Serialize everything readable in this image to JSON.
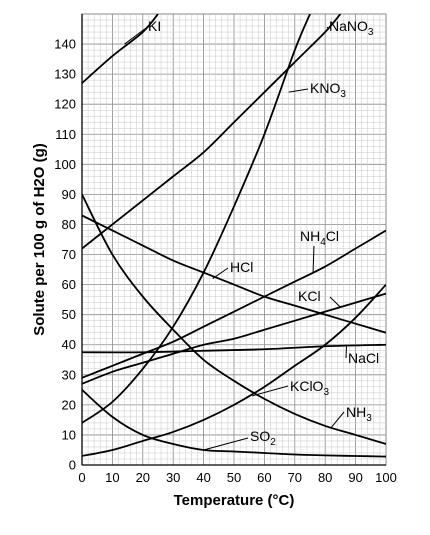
{
  "chart_data": {
    "type": "line",
    "title": "",
    "xlabel": "Temperature (°C)",
    "ylabel": "Solute per 100 g of H2O (g)",
    "xlim": [
      0,
      100
    ],
    "ylim": [
      0,
      150
    ],
    "xticks": [
      0,
      10,
      20,
      30,
      40,
      50,
      60,
      70,
      80,
      90,
      100
    ],
    "yticks": [
      0,
      10,
      20,
      30,
      40,
      50,
      60,
      70,
      80,
      90,
      100,
      110,
      120,
      130,
      140
    ],
    "grid": true,
    "legend": "inline labels",
    "series": [
      {
        "name": "KI",
        "x": [
          0,
          10,
          20,
          25
        ],
        "y": [
          127,
          136,
          144,
          150
        ]
      },
      {
        "name": "NaNO3",
        "x": [
          0,
          10,
          20,
          30,
          40,
          50,
          60,
          70,
          80,
          85
        ],
        "y": [
          72,
          80,
          88,
          96,
          104,
          114,
          124,
          134,
          144,
          150
        ]
      },
      {
        "name": "KNO3",
        "x": [
          0,
          10,
          20,
          30,
          40,
          50,
          60,
          70,
          75
        ],
        "y": [
          14,
          21,
          32,
          46,
          64,
          86,
          110,
          138,
          150
        ]
      },
      {
        "name": "NH4Cl",
        "x": [
          0,
          10,
          20,
          30,
          40,
          50,
          60,
          70,
          80,
          90,
          100
        ],
        "y": [
          29,
          33,
          37,
          41,
          46,
          51,
          56,
          61,
          66,
          72,
          78
        ]
      },
      {
        "name": "HCl",
        "x": [
          0,
          10,
          20,
          30,
          40,
          50,
          60,
          70,
          80,
          90,
          100
        ],
        "y": [
          83,
          78,
          73,
          68,
          64,
          60,
          56,
          53,
          50,
          47,
          44
        ]
      },
      {
        "name": "KCl",
        "x": [
          0,
          10,
          20,
          30,
          40,
          50,
          60,
          70,
          80,
          90,
          100
        ],
        "y": [
          27,
          31,
          34,
          37,
          40,
          42,
          45,
          48,
          51,
          54,
          57
        ]
      },
      {
        "name": "NaCl",
        "x": [
          0,
          20,
          40,
          60,
          80,
          100
        ],
        "y": [
          37.5,
          37.5,
          38,
          38.5,
          39.5,
          40
        ]
      },
      {
        "name": "KClO3",
        "x": [
          0,
          10,
          20,
          30,
          40,
          50,
          60,
          70,
          80,
          90,
          100
        ],
        "y": [
          3,
          5,
          8,
          11,
          15,
          20,
          26,
          33,
          40,
          49,
          60
        ]
      },
      {
        "name": "NH3",
        "x": [
          0,
          10,
          20,
          30,
          40,
          50,
          60,
          70,
          80,
          90,
          100
        ],
        "y": [
          90,
          70,
          56,
          45,
          35,
          28,
          22,
          17,
          13,
          10,
          7
        ]
      },
      {
        "name": "SO2",
        "x": [
          0,
          10,
          20,
          30,
          40,
          50,
          60,
          70,
          80,
          90,
          100
        ],
        "y": [
          25,
          16,
          10,
          7,
          5,
          4.5,
          4,
          3.5,
          3.2,
          3,
          2.8
        ]
      }
    ],
    "labels": [
      {
        "series": "KI",
        "text": "KI",
        "sub": ""
      },
      {
        "series": "NaNO3",
        "text": "NaNO",
        "sub": "3"
      },
      {
        "series": "KNO3",
        "text": "KNO",
        "sub": "3"
      },
      {
        "series": "NH4Cl",
        "text": "NH",
        "sub": "4",
        "after": "Cl"
      },
      {
        "series": "HCl",
        "text": "HCl",
        "sub": ""
      },
      {
        "series": "KCl",
        "text": "KCl",
        "sub": ""
      },
      {
        "series": "NaCl",
        "text": "NaCl",
        "sub": ""
      },
      {
        "series": "KClO3",
        "text": "KClO",
        "sub": "3"
      },
      {
        "series": "NH3",
        "text": "NH",
        "sub": "3"
      },
      {
        "series": "SO2",
        "text": "SO",
        "sub": "2"
      }
    ]
  }
}
